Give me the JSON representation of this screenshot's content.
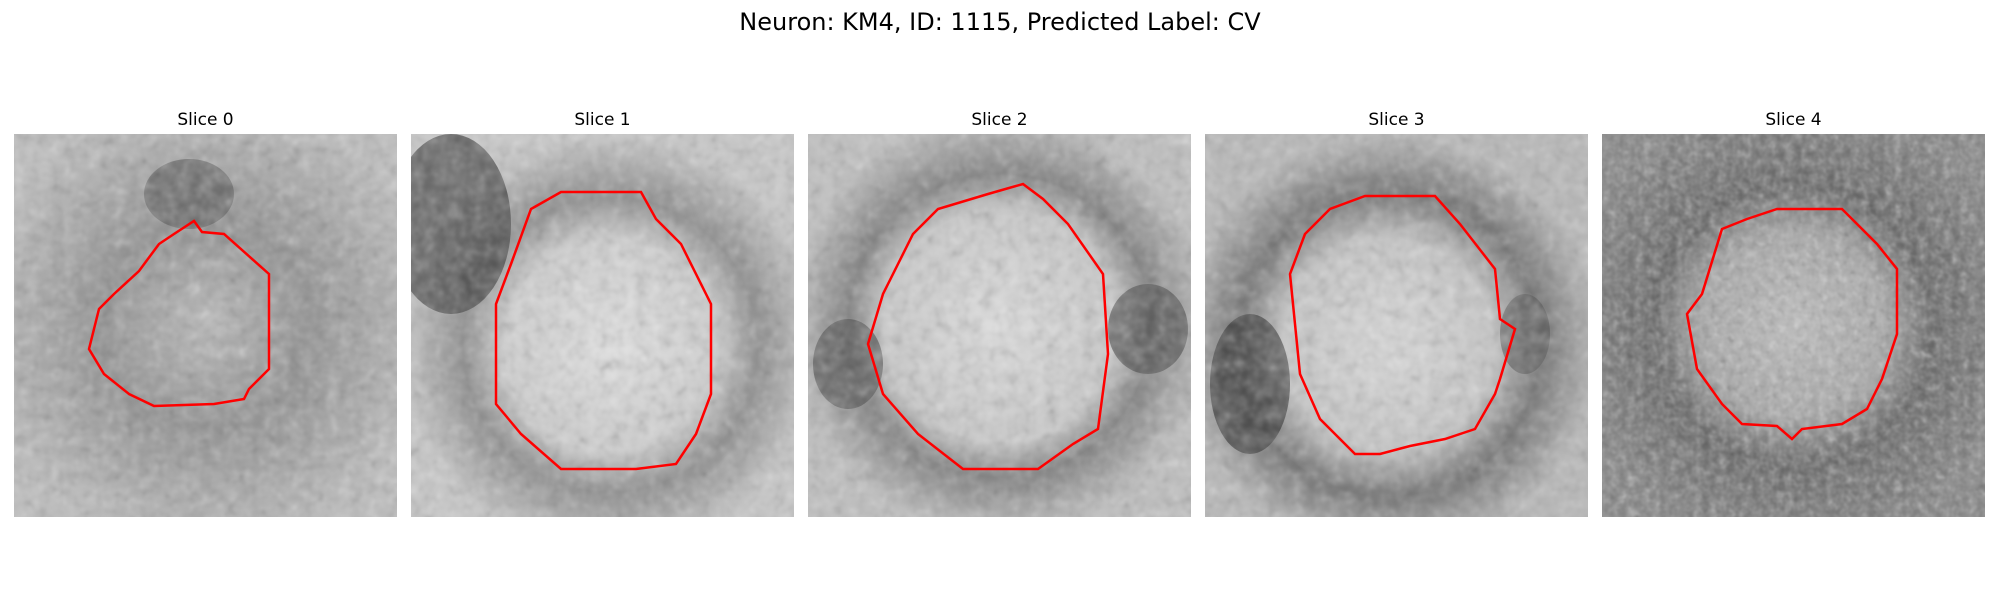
{
  "figure": {
    "title": "Neuron: KM4, ID: 1115, Predicted Label: CV"
  },
  "colors": {
    "contour": "#ff0000",
    "background": "#ffffff"
  },
  "panels": [
    {
      "title": "Slice 0"
    },
    {
      "title": "Slice 1"
    },
    {
      "title": "Slice 2"
    },
    {
      "title": "Slice 3"
    },
    {
      "title": "Slice 4"
    }
  ]
}
